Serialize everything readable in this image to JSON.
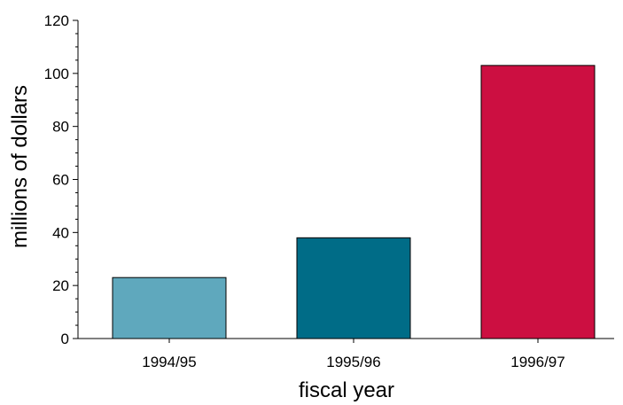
{
  "chart_data": {
    "type": "bar",
    "title": "",
    "xlabel": "fiscal year",
    "ylabel": "millions of dollars",
    "categories": [
      "1994/95",
      "1995/96",
      "1996/97"
    ],
    "values": [
      23,
      38,
      103
    ],
    "colors": [
      "#5fa8bd",
      "#006c87",
      "#cc0f41"
    ],
    "ylim": [
      0,
      120
    ],
    "yticks": [
      0,
      20,
      40,
      60,
      80,
      100,
      120
    ],
    "yticks_minor_step": 5,
    "grid": false,
    "legend": "none"
  }
}
